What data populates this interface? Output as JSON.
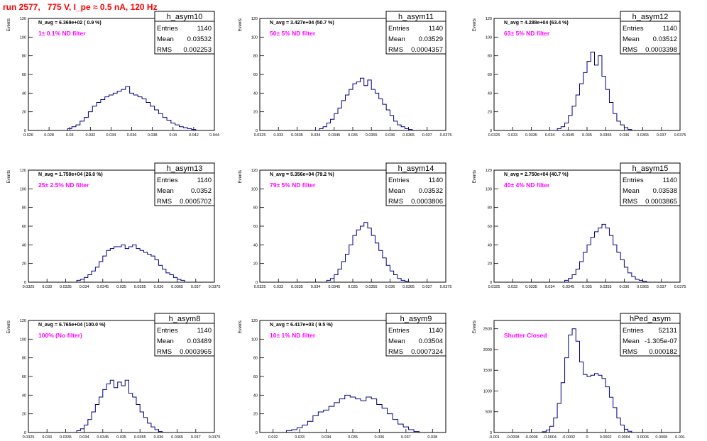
{
  "run_title": "run 2577,   775 V, I_pe ≈ 0.5 nA, 120 Hz",
  "ylabel": "Events",
  "stats_labels": {
    "entries": "Entries",
    "mean": "Mean",
    "rms": "RMS"
  },
  "colors": {
    "histogram": "#000080",
    "filter_text": "#ff00ff",
    "title": "#ff0000",
    "frame": "#000000"
  },
  "chart_data": [
    {
      "type": "histogram",
      "name": "h_asym10",
      "navg": "N_avg = 6.369e+02 ( 0.9 %)",
      "filter": "1± 0.1% ND filter",
      "entries": "1140",
      "mean": "0.03532",
      "rms": "0.002253",
      "xlabel": "",
      "xlim": [
        0.026,
        0.044
      ],
      "ylim": [
        0,
        120
      ],
      "xticks": [
        "0.026",
        "0.028",
        "0.03",
        "0.032",
        "0.034",
        "0.036",
        "0.038",
        "0.04",
        "0.042",
        "0.044"
      ],
      "yticks": [
        "0",
        "20",
        "40",
        "60",
        "80",
        "100",
        "120"
      ],
      "bins": [
        0.0298,
        0.0302,
        0.0306,
        0.031,
        0.0314,
        0.0318,
        0.0322,
        0.0326,
        0.033,
        0.0334,
        0.0338,
        0.0342,
        0.0346,
        0.035,
        0.0354,
        0.0358,
        0.0362,
        0.0366,
        0.037,
        0.0374,
        0.0378,
        0.0382,
        0.0386,
        0.039,
        0.0394,
        0.0398,
        0.0402,
        0.0406,
        0.041,
        0.0414,
        0.0418
      ],
      "values": [
        2,
        4,
        6,
        10,
        14,
        20,
        26,
        30,
        33,
        36,
        38,
        40,
        42,
        44,
        47,
        40,
        38,
        36,
        34,
        30,
        26,
        22,
        18,
        14,
        11,
        8,
        6,
        4,
        3,
        2,
        1
      ]
    },
    {
      "type": "histogram",
      "name": "h_asym11",
      "navg": "N_avg = 3.427e+04 (50.7 %)",
      "filter": "50± 5% ND filter",
      "entries": "1140",
      "mean": "0.03529",
      "rms": "0.0004357",
      "xlabel": "",
      "xlim": [
        0.0325,
        0.0375
      ],
      "ylim": [
        0,
        120
      ],
      "xticks": [
        "0.0325",
        "0.033",
        "0.0335",
        "0.034",
        "0.0345",
        "0.035",
        "0.0355",
        "0.036",
        "0.0365",
        "0.037",
        "0.0375"
      ],
      "yticks": [
        "0",
        "20",
        "40",
        "60",
        "80",
        "100",
        "120"
      ],
      "bins": [
        0.0341,
        0.0342,
        0.0343,
        0.0344,
        0.0345,
        0.0346,
        0.0347,
        0.0348,
        0.0349,
        0.035,
        0.0351,
        0.0352,
        0.0353,
        0.0354,
        0.0355,
        0.0356,
        0.0357,
        0.0358,
        0.0359,
        0.036,
        0.0361,
        0.0362,
        0.0363,
        0.0364,
        0.0365
      ],
      "values": [
        2,
        4,
        8,
        12,
        18,
        24,
        32,
        38,
        44,
        50,
        52,
        56,
        48,
        54,
        44,
        40,
        34,
        28,
        22,
        16,
        10,
        6,
        4,
        2,
        1
      ]
    },
    {
      "type": "histogram",
      "name": "h_asym12",
      "navg": "N_avg = 4.288e+04 (63.4 %)",
      "filter": "63± 5% ND filter",
      "entries": "1140",
      "mean": "0.03512",
      "rms": "0.0003398",
      "xlabel": "",
      "xlim": [
        0.0325,
        0.0375
      ],
      "ylim": [
        0,
        120
      ],
      "xticks": [
        "0.0325",
        "0.033",
        "0.0335",
        "0.034",
        "0.0345",
        "0.035",
        "0.0355",
        "0.036",
        "0.0365",
        "0.037",
        "0.0375"
      ],
      "yticks": [
        "0",
        "20",
        "40",
        "60",
        "80",
        "100",
        "120"
      ],
      "bins": [
        0.0342,
        0.0343,
        0.0344,
        0.0345,
        0.0346,
        0.0347,
        0.0348,
        0.0349,
        0.035,
        0.0351,
        0.0352,
        0.0353,
        0.0354,
        0.0355,
        0.0356,
        0.0357,
        0.0358,
        0.0359,
        0.036,
        0.0361
      ],
      "values": [
        2,
        4,
        8,
        16,
        26,
        38,
        50,
        62,
        74,
        84,
        70,
        80,
        58,
        44,
        30,
        18,
        10,
        6,
        3,
        1
      ]
    },
    {
      "type": "histogram",
      "name": "h_asym13",
      "navg": "N_avg = 1.759e+04 (26.0 %)",
      "filter": "25± 2.5% ND filter",
      "entries": "1140",
      "mean": "0.0352",
      "rms": "0.0005702",
      "xlabel": "",
      "xlim": [
        0.0325,
        0.0375
      ],
      "ylim": [
        0,
        120
      ],
      "xticks": [
        "0.0325",
        "0.033",
        "0.0335",
        "0.034",
        "0.0345",
        "0.035",
        "0.0355",
        "0.036",
        "0.0365",
        "0.037",
        "0.0375"
      ],
      "yticks": [
        "0",
        "20",
        "40",
        "60",
        "80",
        "100",
        "120"
      ],
      "bins": [
        0.0338,
        0.0339,
        0.034,
        0.0341,
        0.0342,
        0.0343,
        0.0344,
        0.0345,
        0.0346,
        0.0347,
        0.0348,
        0.0349,
        0.035,
        0.0351,
        0.0352,
        0.0353,
        0.0354,
        0.0355,
        0.0356,
        0.0357,
        0.0358,
        0.0359,
        0.036,
        0.0361,
        0.0362,
        0.0363,
        0.0364,
        0.0365,
        0.0366
      ],
      "values": [
        2,
        3,
        5,
        8,
        12,
        16,
        22,
        28,
        34,
        36,
        38,
        38,
        40,
        36,
        38,
        40,
        36,
        34,
        32,
        30,
        28,
        24,
        18,
        14,
        10,
        8,
        5,
        3,
        2
      ]
    },
    {
      "type": "histogram",
      "name": "h_asym14",
      "navg": "N_avg = 5.356e+04 (79.2 %)",
      "filter": "79± 5% ND filter",
      "entries": "1140",
      "mean": "0.03532",
      "rms": "0.0003806",
      "xlabel": "",
      "xlim": [
        0.0325,
        0.0375
      ],
      "ylim": [
        0,
        120
      ],
      "xticks": [
        "0.0325",
        "0.033",
        "0.0335",
        "0.034",
        "0.0345",
        "0.035",
        "0.0355",
        "0.036",
        "0.0365",
        "0.037",
        "0.0375"
      ],
      "yticks": [
        "0",
        "20",
        "40",
        "60",
        "80",
        "100",
        "120"
      ],
      "bins": [
        0.0343,
        0.0344,
        0.0345,
        0.0346,
        0.0347,
        0.0348,
        0.0349,
        0.035,
        0.0351,
        0.0352,
        0.0353,
        0.0354,
        0.0355,
        0.0356,
        0.0357,
        0.0358,
        0.0359,
        0.036,
        0.0361,
        0.0362,
        0.0363,
        0.0364
      ],
      "values": [
        2,
        4,
        8,
        14,
        22,
        30,
        40,
        50,
        56,
        60,
        64,
        58,
        50,
        42,
        34,
        26,
        18,
        12,
        8,
        4,
        2,
        1
      ]
    },
    {
      "type": "histogram",
      "name": "h_asym15",
      "navg": "N_avg = 2.750e+04 (40.7 %)",
      "filter": "40± 4% ND filter",
      "entries": "1140",
      "mean": "0.03538",
      "rms": "0.0003865",
      "xlabel": "",
      "xlim": [
        0.0325,
        0.0375
      ],
      "ylim": [
        0,
        120
      ],
      "xticks": [
        "0.0325",
        "0.033",
        "0.0335",
        "0.034",
        "0.0345",
        "0.035",
        "0.0355",
        "0.036",
        "0.0365",
        "0.037",
        "0.0375"
      ],
      "yticks": [
        "0",
        "20",
        "40",
        "60",
        "80",
        "100",
        "120"
      ],
      "bins": [
        0.0344,
        0.0345,
        0.0346,
        0.0347,
        0.0348,
        0.0349,
        0.035,
        0.0351,
        0.0352,
        0.0353,
        0.0354,
        0.0355,
        0.0356,
        0.0357,
        0.0358,
        0.0359,
        0.036,
        0.0361,
        0.0362,
        0.0363,
        0.0364,
        0.0365
      ],
      "values": [
        2,
        4,
        8,
        14,
        22,
        32,
        40,
        48,
        54,
        58,
        62,
        58,
        50,
        40,
        32,
        24,
        16,
        10,
        6,
        3,
        2,
        1
      ]
    },
    {
      "type": "histogram",
      "name": "h_asym8",
      "navg": "N_avg = 6.765e+04 (100.0 %)",
      "filter": "100% (No filter)",
      "entries": "1140",
      "mean": "0.03489",
      "rms": "0.0003965",
      "xlabel": "",
      "xlim": [
        0.0325,
        0.0375
      ],
      "ylim": [
        0,
        120
      ],
      "xticks": [
        "0.0325",
        "0.033",
        "0.0335",
        "0.034",
        "0.0345",
        "0.035",
        "0.0355",
        "0.036",
        "0.0365",
        "0.037",
        "0.0375"
      ],
      "yticks": [
        "0",
        "20",
        "40",
        "60",
        "80",
        "100",
        "120"
      ],
      "bins": [
        0.0338,
        0.0339,
        0.034,
        0.0341,
        0.0342,
        0.0343,
        0.0344,
        0.0345,
        0.0346,
        0.0347,
        0.0348,
        0.0349,
        0.035,
        0.0351,
        0.0352,
        0.0353,
        0.0354,
        0.0355,
        0.0356,
        0.0357,
        0.0358,
        0.0359,
        0.036
      ],
      "values": [
        2,
        4,
        8,
        14,
        22,
        30,
        38,
        46,
        52,
        56,
        48,
        54,
        50,
        56,
        42,
        38,
        30,
        22,
        16,
        10,
        6,
        3,
        1
      ]
    },
    {
      "type": "histogram",
      "name": "h_asym9",
      "navg": "N_avg = 6.417e+03 ( 9.5 %)",
      "filter": "10± 1% ND filter",
      "entries": "1140",
      "mean": "0.03504",
      "rms": "0.0007324",
      "xlabel": "",
      "xlim": [
        0.0315,
        0.0385
      ],
      "ylim": [
        0,
        120
      ],
      "xticks": [
        "0.032",
        "0.033",
        "0.034",
        "0.035",
        "0.036",
        "0.037",
        "0.038"
      ],
      "yticks": [
        "0",
        "20",
        "40",
        "60",
        "80",
        "100",
        "120"
      ],
      "bins": [
        0.0325,
        0.0327,
        0.0329,
        0.0331,
        0.0333,
        0.0335,
        0.0337,
        0.0339,
        0.0341,
        0.0343,
        0.0345,
        0.0347,
        0.0349,
        0.0351,
        0.0353,
        0.0355,
        0.0357,
        0.0359,
        0.0361,
        0.0363,
        0.0365,
        0.0367,
        0.0369,
        0.0371,
        0.0373
      ],
      "values": [
        2,
        3,
        5,
        8,
        12,
        18,
        22,
        24,
        28,
        32,
        36,
        40,
        38,
        36,
        34,
        38,
        36,
        30,
        26,
        20,
        14,
        9,
        6,
        3,
        1
      ]
    },
    {
      "type": "histogram",
      "name": "hPed_asym",
      "navg": "",
      "filter": "Shutter Closed",
      "entries": "52131",
      "mean": "-1.305e-07",
      "rms": "0.000182",
      "xlabel": "",
      "xlim": [
        -0.001,
        0.001
      ],
      "ylim": [
        0,
        2700
      ],
      "xticks": [
        "-0.001",
        "-0.0008",
        "-0.0006",
        "-0.0004",
        "-0.0002",
        "0",
        "0.0002",
        "0.0004",
        "0.0006",
        "0.0008",
        "0.001"
      ],
      "yticks": [
        "0",
        "500",
        "1000",
        "1500",
        "2000",
        "2500"
      ],
      "bins": [
        -0.00048,
        -0.00044,
        -0.0004,
        -0.00036,
        -0.00032,
        -0.00028,
        -0.00024,
        -0.0002,
        -0.00016,
        -0.00012,
        -8e-05,
        -4e-05,
        0,
        4e-05,
        8e-05,
        0.00012,
        0.00016,
        0.0002,
        0.00024,
        0.00028,
        0.00032,
        0.00036,
        0.0004,
        0.00044
      ],
      "values": [
        20,
        60,
        150,
        350,
        700,
        1200,
        1800,
        2350,
        2500,
        2200,
        1700,
        1400,
        1350,
        1380,
        1420,
        1380,
        1300,
        1100,
        850,
        600,
        350,
        180,
        80,
        30
      ]
    }
  ]
}
